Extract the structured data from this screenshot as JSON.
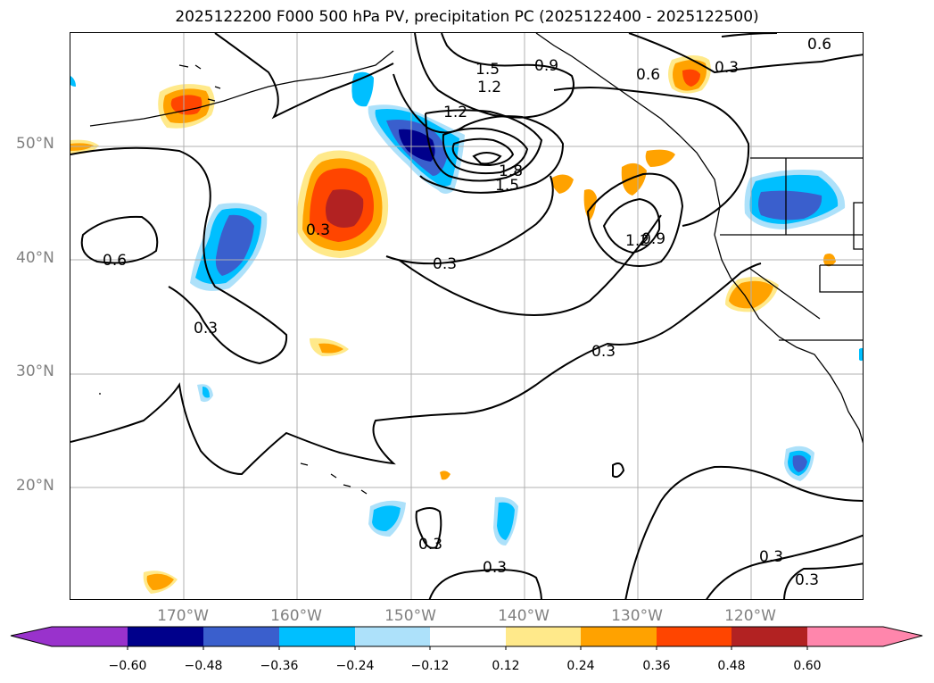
{
  "title": "2025122200 F000 500 hPa PV, precipitation PC (2025122400 - 2025122500)",
  "lat_labels": [
    "50°N",
    "40°N",
    "30°N",
    "20°N"
  ],
  "lon_labels": [
    "170°W",
    "160°W",
    "150°W",
    "140°W",
    "130°W",
    "120°W"
  ],
  "contour_labels": [
    "0.6",
    "0.6",
    "0.9",
    "0.6",
    "0.3",
    "1.5",
    "1.2",
    "1.2",
    "1.8",
    "1.5",
    "0.3",
    "0.3",
    "1.2",
    "0.9",
    "0.3",
    "0.3",
    "0.3",
    "0.3",
    "0.3",
    "0.3"
  ],
  "colorbar": {
    "ticks": [
      "−0.60",
      "−0.48",
      "−0.36",
      "−0.24",
      "−0.12",
      "0.12",
      "0.24",
      "0.36",
      "0.48",
      "0.60"
    ],
    "colors": [
      "#9932CC",
      "#00008B",
      "#3A5FCD",
      "#00BFFF",
      "#ADE1FA",
      "#FFFFFF",
      "#FFE98A",
      "#FFA200",
      "#FF4500",
      "#B22222",
      "#FF86AC"
    ]
  }
}
